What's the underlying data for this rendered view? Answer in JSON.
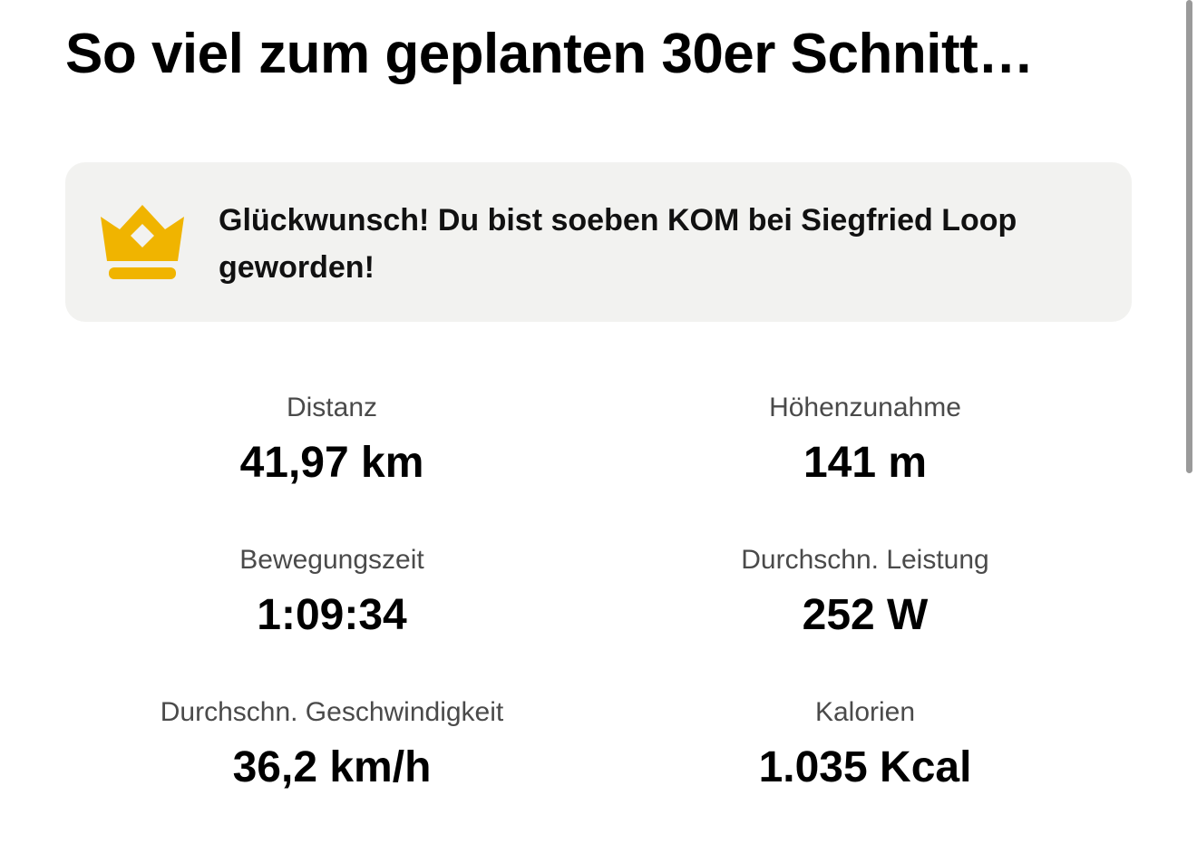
{
  "title": "So viel zum geplanten 30er Schnitt…",
  "achievement": {
    "icon": "crown-icon",
    "icon_color": "#F0B400",
    "message": "Glückwunsch! Du bist soeben KOM bei Siegfried Loop geworden!"
  },
  "stats": {
    "distance": {
      "label": "Distanz",
      "value": "41,97 km"
    },
    "elevation_gain": {
      "label": "Höhenzunahme",
      "value": "141 m"
    },
    "moving_time": {
      "label": "Bewegungszeit",
      "value": "1:09:34"
    },
    "avg_power": {
      "label": "Durchschn. Leistung",
      "value": "252 W"
    },
    "avg_speed": {
      "label": "Durchschn. Geschwindigkeit",
      "value": "36,2 km/h"
    },
    "calories": {
      "label": "Kalorien",
      "value": "1.035 Kcal"
    }
  }
}
